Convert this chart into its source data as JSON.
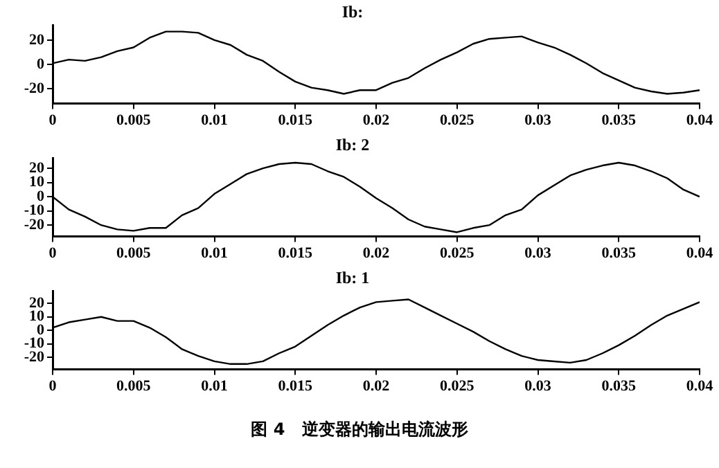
{
  "chart_data": [
    {
      "type": "line",
      "title": "Ib:",
      "color": "#000000",
      "marker": "none",
      "x": [
        0,
        0.001,
        0.002,
        0.003,
        0.004,
        0.005,
        0.006,
        0.007,
        0.008,
        0.009,
        0.01,
        0.011,
        0.012,
        0.013,
        0.014,
        0.015,
        0.016,
        0.017,
        0.018,
        0.019,
        0.02,
        0.021,
        0.022,
        0.023,
        0.024,
        0.025,
        0.026,
        0.027,
        0.028,
        0.029,
        0.03,
        0.031,
        0.032,
        0.033,
        0.034,
        0.035,
        0.036,
        0.037,
        0.038,
        0.039,
        0.04
      ],
      "values": [
        1,
        4,
        3,
        6,
        11,
        14,
        22,
        27,
        27,
        26,
        20,
        16,
        8,
        3,
        -6,
        -14,
        -19,
        -21,
        -24,
        -21,
        -21,
        -15,
        -11,
        -3,
        4,
        10,
        17,
        21,
        22,
        23,
        18,
        14,
        8,
        1,
        -7,
        -13,
        -19,
        -22,
        -24,
        -23,
        -21
      ],
      "xlim": [
        0,
        0.04
      ],
      "xticks": [
        0,
        0.005,
        0.01,
        0.015,
        0.02,
        0.025,
        0.03,
        0.035,
        0.04
      ],
      "ylim": [
        -32,
        32
      ],
      "yticks": [
        -20,
        0,
        20
      ]
    },
    {
      "type": "line",
      "title": "Ib: 2",
      "color": "#000000",
      "marker": "none",
      "x": [
        0,
        0.001,
        0.002,
        0.003,
        0.004,
        0.005,
        0.006,
        0.007,
        0.008,
        0.009,
        0.01,
        0.011,
        0.012,
        0.013,
        0.014,
        0.015,
        0.016,
        0.017,
        0.018,
        0.019,
        0.02,
        0.021,
        0.022,
        0.023,
        0.024,
        0.025,
        0.026,
        0.027,
        0.028,
        0.029,
        0.03,
        0.031,
        0.032,
        0.033,
        0.034,
        0.035,
        0.036,
        0.037,
        0.038,
        0.039,
        0.04
      ],
      "values": [
        0,
        -9,
        -14,
        -20,
        -23,
        -24,
        -22,
        -22,
        -13,
        -8,
        2,
        9,
        16,
        20,
        23,
        24,
        23,
        18,
        14,
        7,
        -1,
        -8,
        -16,
        -21,
        -23,
        -25,
        -22,
        -20,
        -13,
        -9,
        1,
        8,
        15,
        19,
        22,
        24,
        22,
        18,
        13,
        5,
        0
      ],
      "xlim": [
        0,
        0.04
      ],
      "xticks": [
        0,
        0.005,
        0.01,
        0.015,
        0.02,
        0.025,
        0.03,
        0.035,
        0.04
      ],
      "ylim": [
        -28,
        27
      ],
      "yticks": [
        -20,
        -10,
        0,
        10,
        20
      ]
    },
    {
      "type": "line",
      "title": "Ib: 1",
      "color": "#000000",
      "marker": "none",
      "x": [
        0,
        0.001,
        0.002,
        0.003,
        0.004,
        0.005,
        0.006,
        0.007,
        0.008,
        0.009,
        0.01,
        0.011,
        0.012,
        0.013,
        0.014,
        0.015,
        0.016,
        0.017,
        0.018,
        0.019,
        0.02,
        0.021,
        0.022,
        0.023,
        0.024,
        0.025,
        0.026,
        0.027,
        0.028,
        0.029,
        0.03,
        0.031,
        0.032,
        0.033,
        0.034,
        0.035,
        0.036,
        0.037,
        0.038,
        0.039,
        0.04
      ],
      "values": [
        2,
        6,
        8,
        10,
        7,
        7,
        2,
        -5,
        -14,
        -19,
        -23,
        -25,
        -25,
        -23,
        -17,
        -12,
        -4,
        4,
        11,
        17,
        21,
        22,
        23,
        17,
        11,
        5,
        -1,
        -8,
        -14,
        -19,
        -22,
        -23,
        -24,
        -22,
        -17,
        -11,
        -4,
        4,
        11,
        16,
        21
      ],
      "xlim": [
        0,
        0.04
      ],
      "xticks": [
        0,
        0.005,
        0.01,
        0.015,
        0.02,
        0.025,
        0.03,
        0.035,
        0.04
      ],
      "ylim": [
        -29,
        29
      ],
      "yticks": [
        -20,
        -10,
        0,
        10,
        20
      ],
      "annotations": [
        "图 4　逆变器的输出电流波形"
      ]
    }
  ]
}
